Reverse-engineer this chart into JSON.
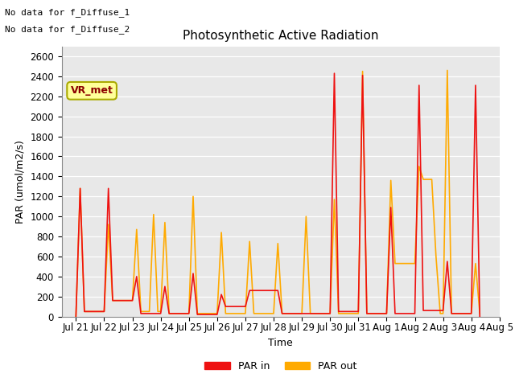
{
  "title": "Photosynthetic Active Radiation",
  "xlabel": "Time",
  "ylabel": "PAR (umol/m2/s)",
  "ylim": [
    0,
    2700
  ],
  "yticks": [
    0,
    200,
    400,
    600,
    800,
    1000,
    1200,
    1400,
    1600,
    1800,
    2000,
    2200,
    2400,
    2600
  ],
  "annotations": [
    "No data for f_Diffuse_1",
    "No data for f_Diffuse_2"
  ],
  "box_label": "VR_met",
  "box_facecolor": "#ffff99",
  "box_edgecolor": "#aaaa00",
  "box_text_color": "#8B0000",
  "par_in_color": "#ee1111",
  "par_out_color": "#ffaa00",
  "x_tick_labels": [
    "Jul 21",
    "Jul 22",
    "Jul 23",
    "Jul 24",
    "Jul 25",
    "Jul 26",
    "Jul 27",
    "Jul 28",
    "Jul 29",
    "Jul 30",
    "Jul 31",
    "Aug 1",
    "Aug 2",
    "Aug 3",
    "Aug 4",
    "Aug 5"
  ],
  "background_color": "#e8e8e8",
  "grid_color": "#ffffff",
  "par_in_x": [
    0.0,
    0.15,
    0.3,
    1.0,
    1.15,
    1.3,
    2.0,
    2.15,
    2.3,
    3.0,
    3.15,
    3.3,
    4.0,
    4.15,
    4.3,
    5.0,
    5.15,
    5.3,
    6.0,
    6.15,
    6.3,
    7.0,
    7.15,
    7.3,
    9.0,
    9.15,
    9.3,
    10.0,
    10.15,
    10.3,
    11.0,
    11.15,
    11.3,
    12.0,
    12.15,
    12.3,
    13.0,
    13.15,
    13.3,
    14.0,
    14.15,
    14.3
  ],
  "par_in_y": [
    0,
    1280,
    50,
    50,
    1280,
    160,
    160,
    400,
    30,
    30,
    300,
    30,
    30,
    430,
    20,
    20,
    220,
    100,
    100,
    260,
    260,
    260,
    260,
    30,
    30,
    2430,
    50,
    50,
    2410,
    30,
    30,
    1090,
    30,
    30,
    2310,
    60,
    60,
    550,
    30,
    30,
    2310,
    0
  ],
  "par_out_x": [
    0.0,
    0.15,
    0.3,
    1.0,
    1.15,
    1.3,
    2.0,
    2.15,
    2.3,
    2.6,
    2.75,
    2.9,
    3.0,
    3.15,
    3.3,
    4.0,
    4.15,
    4.3,
    5.0,
    5.15,
    5.3,
    6.0,
    6.15,
    6.3,
    7.0,
    7.15,
    7.3,
    8.0,
    8.15,
    8.3,
    9.0,
    9.15,
    9.3,
    10.0,
    10.15,
    10.3,
    11.0,
    11.15,
    11.3,
    12.0,
    12.15,
    12.3,
    12.6,
    12.75,
    12.9,
    13.0,
    13.15,
    13.3,
    14.0,
    14.15,
    14.3
  ],
  "par_out_y": [
    0,
    1280,
    50,
    50,
    920,
    160,
    160,
    870,
    50,
    50,
    1020,
    50,
    50,
    940,
    30,
    30,
    1200,
    30,
    30,
    840,
    30,
    30,
    750,
    30,
    30,
    730,
    30,
    30,
    1000,
    30,
    30,
    1170,
    30,
    30,
    2450,
    30,
    30,
    1360,
    530,
    530,
    1500,
    1370,
    1370,
    600,
    30,
    30,
    2460,
    30,
    30,
    530,
    30
  ]
}
